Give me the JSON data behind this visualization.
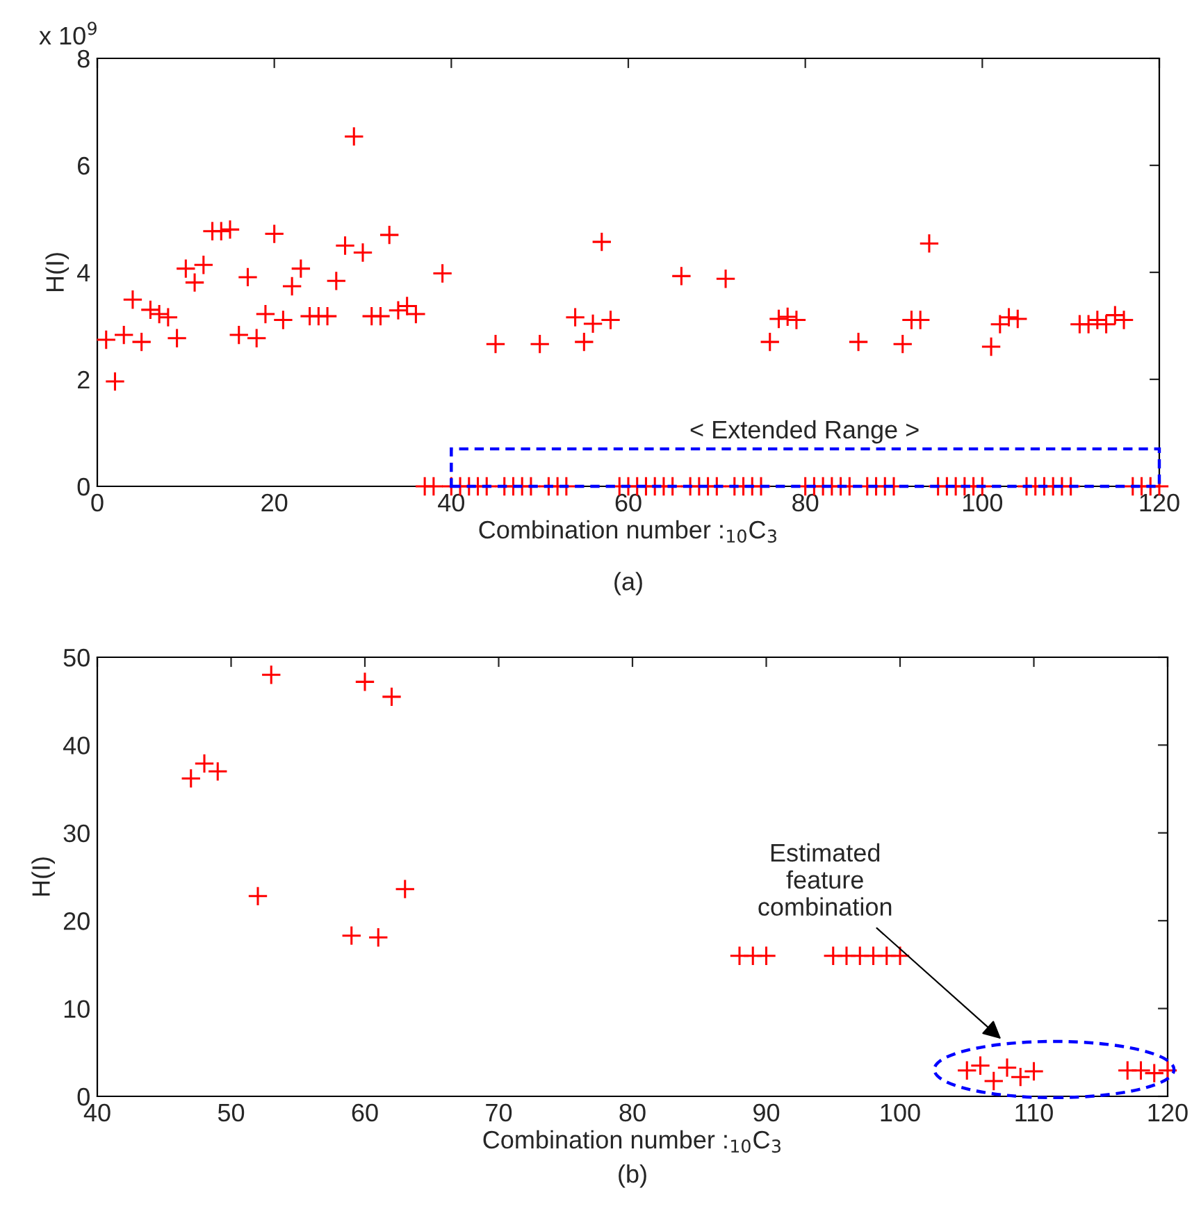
{
  "chart_data": [
    {
      "type": "scatter",
      "xlabel": "Combination number :$_{10}$C$_{3}$",
      "ylabel": "H(I)",
      "marker": "cross",
      "grid": false,
      "xlim": [
        0,
        120
      ],
      "xticks": [
        0,
        20,
        40,
        60,
        80,
        100,
        120
      ],
      "ylim": [
        0,
        8
      ],
      "yticks": [
        0,
        2,
        4,
        6,
        8
      ],
      "annotations": [
        "x 10$^{9}$",
        "< Extended Range >",
        "(a)"
      ],
      "series": [
        {
          "color": "#ff0000",
          "x": [
            1,
            2,
            3,
            4,
            5,
            6,
            7,
            8,
            9,
            10,
            11,
            12,
            13,
            14,
            15,
            16,
            17,
            18,
            19,
            20,
            21,
            22,
            23,
            24,
            25,
            26,
            27,
            28,
            29,
            30,
            31,
            32,
            33,
            34,
            35,
            36,
            39,
            45,
            50,
            54,
            55,
            56,
            57,
            58,
            66,
            71,
            76,
            77,
            78,
            79,
            86,
            91,
            92,
            93,
            94,
            101,
            102,
            103,
            104,
            111,
            112,
            113,
            114,
            115,
            116
          ],
          "values": [
            2.74,
            1.96,
            2.83,
            3.49,
            2.7,
            3.3,
            3.22,
            3.16,
            2.77,
            4.07,
            3.81,
            4.14,
            4.77,
            4.77,
            4.8,
            2.83,
            3.91,
            2.77,
            3.22,
            4.72,
            3.11,
            3.74,
            4.07,
            3.18,
            3.18,
            3.18,
            3.84,
            4.5,
            6.54,
            4.37,
            3.18,
            3.18,
            4.7,
            3.29,
            3.37,
            3.22,
            3.98,
            2.66,
            2.66,
            3.16,
            2.7,
            3.04,
            4.57,
            3.11,
            3.93,
            3.88,
            2.7,
            3.13,
            3.17,
            3.11,
            2.7,
            2.66,
            3.11,
            3.11,
            4.54,
            2.61,
            3.03,
            3.16,
            3.13,
            3.03,
            3.03,
            3.11,
            3.03,
            3.2,
            3.11
          ]
        },
        {
          "color": "#ff0000",
          "x": [
            37,
            38,
            40,
            41,
            42,
            43,
            44,
            46,
            47,
            48,
            49,
            51,
            52,
            53,
            59,
            60,
            61,
            62,
            63,
            64,
            65,
            67,
            68,
            69,
            70,
            72,
            73,
            74,
            75,
            80,
            81,
            82,
            83,
            84,
            85,
            87,
            88,
            89,
            90,
            95,
            96,
            97,
            98,
            99,
            100,
            105,
            106,
            107,
            108,
            109,
            110,
            117,
            118,
            119,
            120
          ],
          "values": [
            0,
            0,
            0,
            0,
            0,
            0,
            0,
            0,
            0,
            0,
            0,
            0,
            0,
            0,
            0,
            0,
            0,
            0,
            0,
            0,
            0,
            0,
            0,
            0,
            0,
            0,
            0,
            0,
            0,
            0,
            0,
            0,
            0,
            0,
            0,
            0,
            0,
            0,
            0,
            0,
            0,
            0,
            0,
            0,
            0,
            0,
            0,
            0,
            0,
            0,
            0,
            0,
            0,
            0,
            0
          ]
        }
      ]
    },
    {
      "type": "scatter",
      "xlabel": "Combination number :$_{10}$C$_{3}$",
      "ylabel": "H(I)",
      "marker": "cross",
      "grid": false,
      "xlim": [
        40,
        120
      ],
      "xticks": [
        40,
        50,
        60,
        70,
        80,
        90,
        100,
        110,
        120
      ],
      "ylim": [
        0,
        50
      ],
      "yticks": [
        0,
        10,
        20,
        30,
        40,
        50
      ],
      "annotations": [
        "Estimated\nfeature\ncombination",
        "(b)"
      ],
      "series": [
        {
          "color": "#ff0000",
          "x": [
            47,
            48,
            49,
            52,
            53,
            59,
            60,
            61,
            62,
            63,
            88,
            89,
            90,
            95,
            96,
            97,
            98,
            99,
            100,
            105,
            106,
            107,
            108,
            109,
            110,
            117,
            118,
            119,
            120
          ],
          "values": [
            36.2,
            37.9,
            37.0,
            22.8,
            48.0,
            18.3,
            47.2,
            18.1,
            45.5,
            23.6,
            16.0,
            16.0,
            16.0,
            16.0,
            16.0,
            16.0,
            16.0,
            16.0,
            16.0,
            2.95,
            3.5,
            1.74,
            3.27,
            2.2,
            2.85,
            2.95,
            2.95,
            2.64,
            2.95
          ]
        }
      ]
    }
  ]
}
